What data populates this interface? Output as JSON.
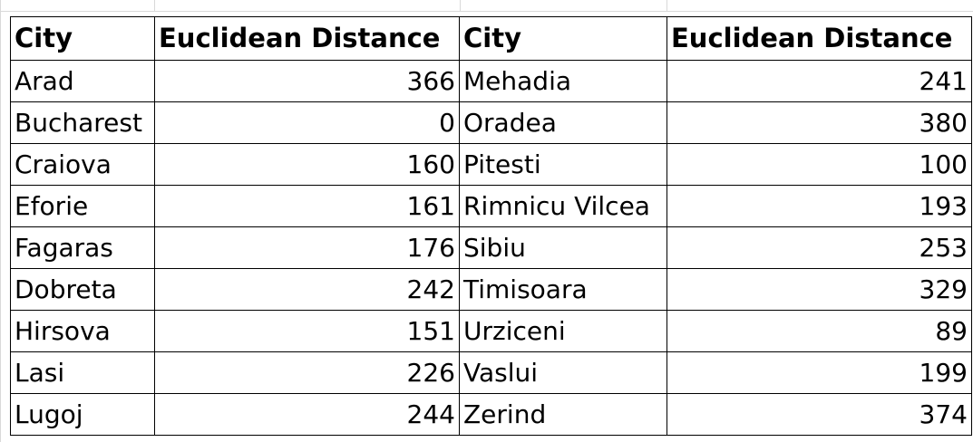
{
  "table": {
    "headers": [
      "City",
      "Euclidean Distance",
      "City",
      "Euclidean Distance"
    ],
    "rows": [
      {
        "city_a": "Arad",
        "dist_a": "366",
        "city_b": "Mehadia",
        "dist_b": "241"
      },
      {
        "city_a": "Bucharest",
        "dist_a": "0",
        "city_b": "Oradea",
        "dist_b": "380"
      },
      {
        "city_a": "Craiova",
        "dist_a": "160",
        "city_b": "Pitesti",
        "dist_b": "100"
      },
      {
        "city_a": "Eforie",
        "dist_a": "161",
        "city_b": "Rimnicu Vilcea",
        "dist_b": "193"
      },
      {
        "city_a": "Fagaras",
        "dist_a": "176",
        "city_b": "Sibiu",
        "dist_b": "253"
      },
      {
        "city_a": "Dobreta",
        "dist_a": "242",
        "city_b": "Timisoara",
        "dist_b": "329"
      },
      {
        "city_a": "Hirsova",
        "dist_a": "151",
        "city_b": "Urziceni",
        "dist_b": "89"
      },
      {
        "city_a": "Lasi",
        "dist_a": "226",
        "city_b": "Vaslui",
        "dist_b": "199"
      },
      {
        "city_a": "Lugoj",
        "dist_a": "244",
        "city_b": "Zerind",
        "dist_b": "374"
      }
    ]
  },
  "colors": {
    "border": "#000000",
    "gridline": "#d9d9d9",
    "background": "#ffffff"
  }
}
